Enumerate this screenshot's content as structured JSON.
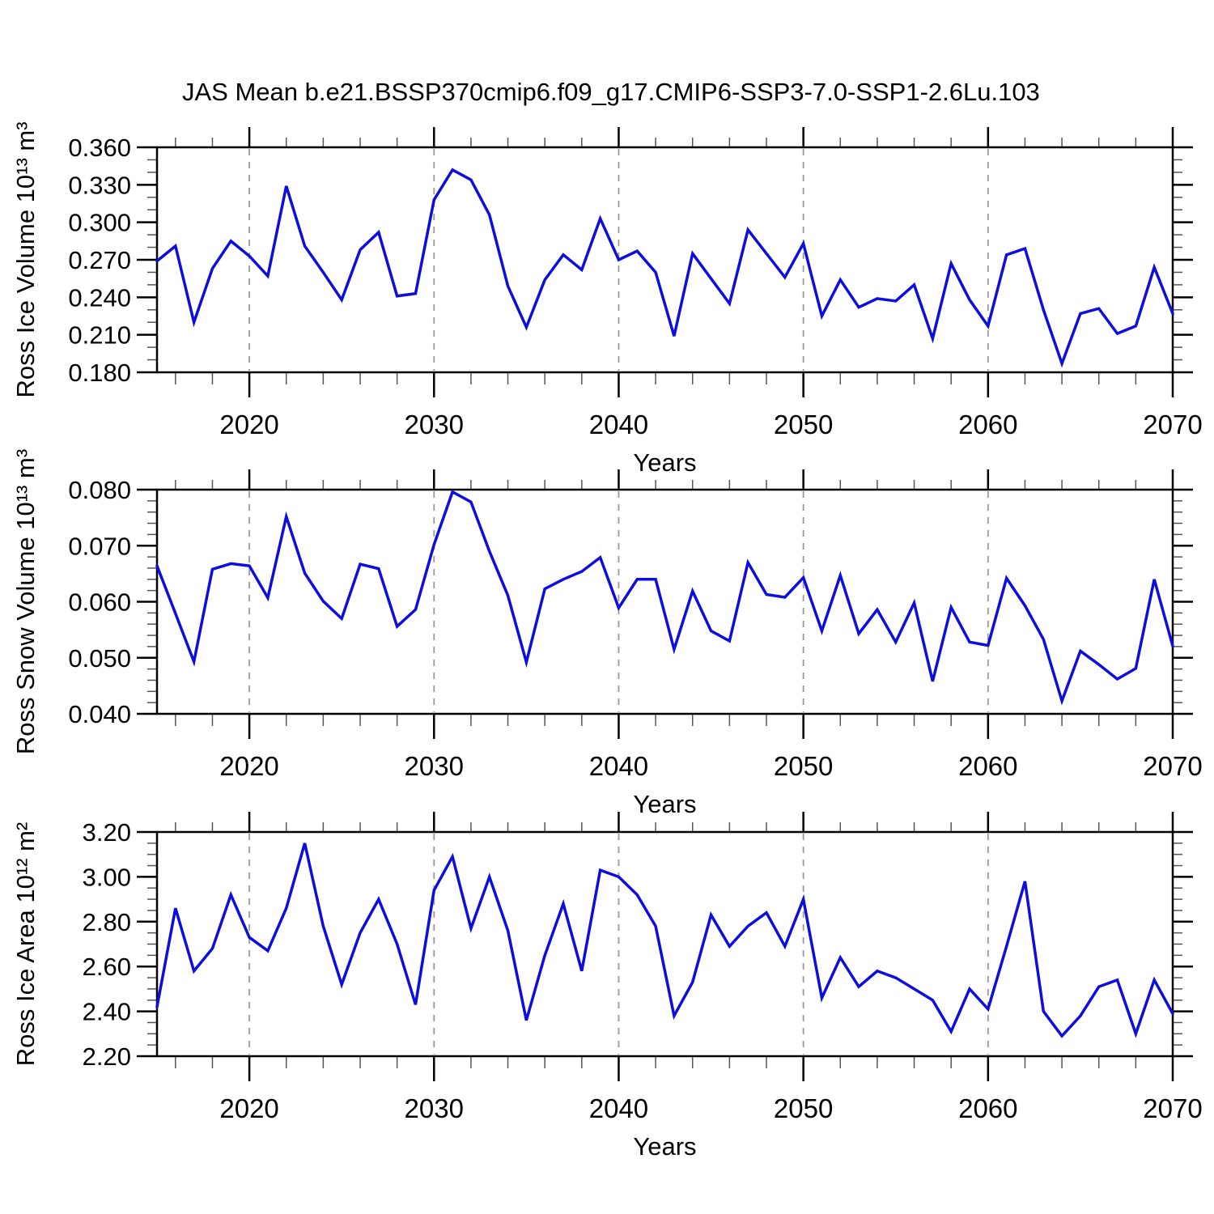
{
  "title": "JAS Mean b.e21.BSSP370cmip6.f09_g17.CMIP6-SSP3-7.0-SSP1-2.6Lu.103",
  "colors": {
    "line": "#0D0DE0",
    "grid": "#9a9a9a",
    "axis": "#000000"
  },
  "x_axis": {
    "label": "Years",
    "range": [
      2015,
      2070
    ],
    "tick_years": [
      2020,
      2030,
      2040,
      2050,
      2060,
      2070
    ],
    "tick_labels": [
      "2020",
      "2030",
      "2040",
      "2050",
      "2060",
      "2070"
    ],
    "minor_step_years": 2,
    "gridline_years": [
      2020,
      2030,
      2040,
      2050,
      2060
    ]
  },
  "chart_data": [
    {
      "type": "line",
      "name": "ross-ice-volume",
      "ylabel": "Ross Ice Volume 10¹³ m³",
      "ylim": [
        0.18,
        0.36
      ],
      "ytick_values": [
        0.18,
        0.21,
        0.24,
        0.27,
        0.3,
        0.33,
        0.36
      ],
      "ytick_labels": [
        "0.180",
        "0.210",
        "0.240",
        "0.270",
        "0.300",
        "0.330",
        "0.360"
      ],
      "yminor_step": 0.01,
      "legend": "none",
      "grid": "vertical-dashed",
      "x_years": [
        2015,
        2016,
        2017,
        2018,
        2019,
        2020,
        2021,
        2022,
        2023,
        2024,
        2025,
        2026,
        2027,
        2028,
        2029,
        2030,
        2031,
        2032,
        2033,
        2034,
        2035,
        2036,
        2037,
        2038,
        2039,
        2040,
        2041,
        2042,
        2043,
        2044,
        2045,
        2046,
        2047,
        2048,
        2049,
        2050,
        2051,
        2052,
        2053,
        2054,
        2055,
        2056,
        2057,
        2058,
        2059,
        2060,
        2061,
        2062,
        2063,
        2064,
        2065,
        2066,
        2067,
        2068,
        2069,
        2070
      ],
      "values": [
        0.269,
        0.281,
        0.22,
        0.263,
        0.285,
        0.273,
        0.257,
        0.329,
        0.281,
        0.26,
        0.238,
        0.278,
        0.292,
        0.241,
        0.243,
        0.318,
        0.342,
        0.334,
        0.306,
        0.249,
        0.216,
        0.254,
        0.274,
        0.262,
        0.303,
        0.27,
        0.277,
        0.26,
        0.209,
        0.275,
        0.255,
        0.235,
        0.294,
        0.275,
        0.256,
        0.283,
        0.225,
        0.254,
        0.232,
        0.239,
        0.237,
        0.25,
        0.207,
        0.267,
        0.238,
        0.217,
        0.274,
        0.279,
        0.23,
        0.187,
        0.227,
        0.231,
        0.211,
        0.217,
        0.264,
        0.227
      ]
    },
    {
      "type": "line",
      "name": "ross-snow-volume",
      "ylabel": "Ross Snow Volume 10¹³ m³",
      "ylim": [
        0.04,
        0.08
      ],
      "ytick_values": [
        0.04,
        0.05,
        0.06,
        0.07,
        0.08
      ],
      "ytick_labels": [
        "0.040",
        "0.050",
        "0.060",
        "0.070",
        "0.080"
      ],
      "yminor_step": 0.002,
      "legend": "none",
      "grid": "vertical-dashed",
      "x_years": [
        2015,
        2016,
        2017,
        2018,
        2019,
        2020,
        2021,
        2022,
        2023,
        2024,
        2025,
        2026,
        2027,
        2028,
        2029,
        2030,
        2031,
        2032,
        2033,
        2034,
        2035,
        2036,
        2037,
        2038,
        2039,
        2040,
        2041,
        2042,
        2043,
        2044,
        2045,
        2046,
        2047,
        2048,
        2049,
        2050,
        2051,
        2052,
        2053,
        2054,
        2055,
        2056,
        2057,
        2058,
        2059,
        2060,
        2061,
        2062,
        2063,
        2064,
        2065,
        2066,
        2067,
        2068,
        2069,
        2070
      ],
      "values": [
        0.0664,
        0.0579,
        0.0493,
        0.0658,
        0.0668,
        0.0664,
        0.0607,
        0.0752,
        0.0651,
        0.0601,
        0.057,
        0.0667,
        0.0659,
        0.0556,
        0.0586,
        0.0702,
        0.0796,
        0.0778,
        0.069,
        0.0611,
        0.0492,
        0.0623,
        0.064,
        0.0654,
        0.0679,
        0.0589,
        0.064,
        0.064,
        0.0515,
        0.0619,
        0.0548,
        0.053,
        0.067,
        0.0613,
        0.0608,
        0.0643,
        0.0548,
        0.0647,
        0.0543,
        0.0586,
        0.0528,
        0.0598,
        0.0458,
        0.059,
        0.0528,
        0.0522,
        0.0642,
        0.0593,
        0.0533,
        0.0423,
        0.0512,
        0.0488,
        0.0462,
        0.0481,
        0.064,
        0.0521
      ]
    },
    {
      "type": "line",
      "name": "ross-ice-area",
      "ylabel": "Ross Ice Area 10¹² m²",
      "ylim": [
        2.2,
        3.2
      ],
      "ytick_values": [
        2.2,
        2.4,
        2.6,
        2.8,
        3.0,
        3.2
      ],
      "ytick_labels": [
        "2.20",
        "2.40",
        "2.60",
        "2.80",
        "3.00",
        "3.20"
      ],
      "yminor_step": 0.05,
      "legend": "none",
      "grid": "vertical-dashed",
      "x_years": [
        2015,
        2016,
        2017,
        2018,
        2019,
        2020,
        2021,
        2022,
        2023,
        2024,
        2025,
        2026,
        2027,
        2028,
        2029,
        2030,
        2031,
        2032,
        2033,
        2034,
        2035,
        2036,
        2037,
        2038,
        2039,
        2040,
        2041,
        2042,
        2043,
        2044,
        2045,
        2046,
        2047,
        2048,
        2049,
        2050,
        2051,
        2052,
        2053,
        2054,
        2055,
        2056,
        2057,
        2058,
        2059,
        2060,
        2061,
        2062,
        2063,
        2064,
        2065,
        2066,
        2067,
        2068,
        2069,
        2070
      ],
      "values": [
        2.42,
        2.86,
        2.58,
        2.68,
        2.92,
        2.73,
        2.67,
        2.86,
        3.15,
        2.78,
        2.52,
        2.75,
        2.9,
        2.7,
        2.43,
        2.94,
        3.09,
        2.77,
        3.0,
        2.76,
        2.36,
        2.65,
        2.88,
        2.58,
        3.03,
        3.0,
        2.92,
        2.78,
        2.38,
        2.53,
        2.83,
        2.69,
        2.78,
        2.84,
        2.69,
        2.9,
        2.46,
        2.64,
        2.51,
        2.58,
        2.55,
        2.5,
        2.45,
        2.31,
        2.5,
        2.41,
        2.69,
        2.98,
        2.4,
        2.29,
        2.38,
        2.51,
        2.54,
        2.3,
        2.54,
        2.39
      ]
    }
  ]
}
